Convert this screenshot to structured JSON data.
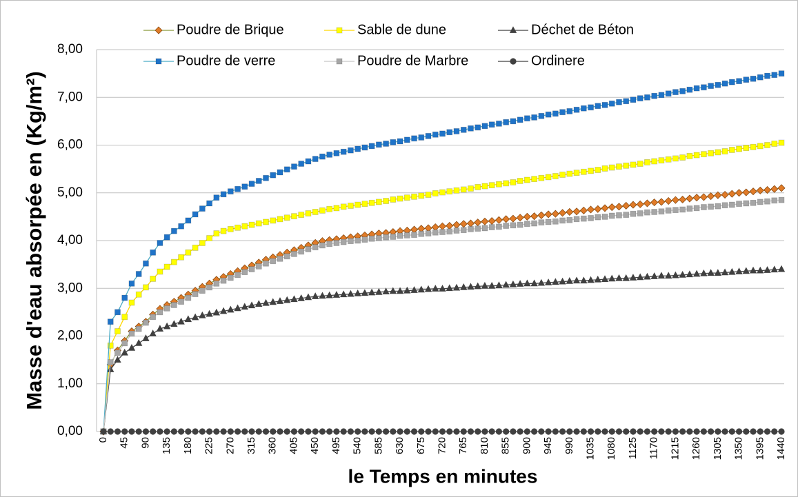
{
  "chart_data": {
    "type": "line",
    "ylabel": "Masse d'eau absorpée en (Kg/m²)",
    "xlabel": "le Temps en minutes",
    "x": [
      0,
      15,
      30,
      45,
      60,
      75,
      90,
      105,
      120,
      135,
      150,
      165,
      180,
      195,
      210,
      225,
      240,
      255,
      270,
      285,
      300,
      315,
      330,
      345,
      360,
      375,
      390,
      405,
      420,
      435,
      450,
      465,
      480,
      495,
      510,
      525,
      540,
      555,
      570,
      585,
      600,
      615,
      630,
      645,
      660,
      675,
      690,
      705,
      720,
      735,
      750,
      765,
      780,
      795,
      810,
      825,
      840,
      855,
      870,
      885,
      900,
      915,
      930,
      945,
      960,
      975,
      990,
      1005,
      1020,
      1035,
      1050,
      1065,
      1080,
      1095,
      1110,
      1125,
      1140,
      1155,
      1170,
      1185,
      1200,
      1215,
      1230,
      1245,
      1260,
      1275,
      1290,
      1305,
      1320,
      1335,
      1350,
      1365,
      1380,
      1395,
      1410,
      1425,
      1440
    ],
    "xlim": [
      0,
      1440
    ],
    "xticks": [
      0,
      45,
      90,
      135,
      180,
      225,
      270,
      315,
      360,
      405,
      450,
      495,
      540,
      585,
      630,
      675,
      720,
      765,
      810,
      855,
      900,
      945,
      990,
      1035,
      1080,
      1125,
      1170,
      1215,
      1260,
      1305,
      1350,
      1395,
      1440
    ],
    "ylim": [
      0,
      8
    ],
    "yticks": [
      {
        "value": 0,
        "label": "0,00"
      },
      {
        "value": 1,
        "label": "1,00"
      },
      {
        "value": 2,
        "label": "2,00"
      },
      {
        "value": 3,
        "label": "3,00"
      },
      {
        "value": 4,
        "label": "4,00"
      },
      {
        "value": 5,
        "label": "5,00"
      },
      {
        "value": 6,
        "label": "6,00"
      },
      {
        "value": 7,
        "label": "7,00"
      },
      {
        "value": 8,
        "label": "8,00"
      }
    ],
    "grid": true,
    "legend": "top",
    "series": [
      {
        "name": "Poudre de Brique",
        "color": "#8a9a3c",
        "marker": "diamond",
        "marker_color": "#e07b28",
        "values": [
          0,
          1.4,
          1.7,
          1.9,
          2.1,
          2.2,
          2.3,
          2.45,
          2.57,
          2.65,
          2.72,
          2.8,
          2.87,
          2.95,
          3.03,
          3.1,
          3.18,
          3.24,
          3.3,
          3.36,
          3.42,
          3.48,
          3.54,
          3.6,
          3.65,
          3.7,
          3.75,
          3.8,
          3.85,
          3.9,
          3.95,
          3.99,
          4.01,
          4.03,
          4.05,
          4.07,
          4.09,
          4.11,
          4.13,
          4.15,
          4.16,
          4.18,
          4.2,
          4.21,
          4.23,
          4.25,
          4.26,
          4.28,
          4.3,
          4.31,
          4.33,
          4.35,
          4.36,
          4.38,
          4.4,
          4.41,
          4.43,
          4.45,
          4.46,
          4.48,
          4.5,
          4.51,
          4.53,
          4.55,
          4.56,
          4.58,
          4.6,
          4.61,
          4.63,
          4.65,
          4.66,
          4.68,
          4.7,
          4.71,
          4.73,
          4.75,
          4.76,
          4.78,
          4.8,
          4.81,
          4.83,
          4.85,
          4.86,
          4.88,
          4.9,
          4.91,
          4.93,
          4.95,
          4.96,
          4.98,
          5,
          5.01,
          5.03,
          5.05,
          5.06,
          5.08,
          5.1
        ]
      },
      {
        "name": "Sable de dune",
        "color": "#ffd800",
        "marker": "square",
        "marker_color": "#ffff00",
        "values": [
          0,
          1.8,
          2.1,
          2.4,
          2.7,
          2.87,
          3.02,
          3.2,
          3.35,
          3.45,
          3.55,
          3.65,
          3.75,
          3.85,
          3.95,
          4.05,
          4.15,
          4.2,
          4.24,
          4.27,
          4.3,
          4.33,
          4.36,
          4.39,
          4.42,
          4.45,
          4.48,
          4.51,
          4.54,
          4.57,
          4.6,
          4.63,
          4.66,
          4.68,
          4.71,
          4.73,
          4.75,
          4.77,
          4.79,
          4.81,
          4.83,
          4.86,
          4.88,
          4.9,
          4.92,
          4.94,
          4.96,
          4.99,
          5.01,
          5.03,
          5.05,
          5.07,
          5.09,
          5.12,
          5.14,
          5.16,
          5.18,
          5.2,
          5.22,
          5.25,
          5.27,
          5.29,
          5.31,
          5.33,
          5.35,
          5.38,
          5.4,
          5.42,
          5.44,
          5.46,
          5.48,
          5.51,
          5.53,
          5.55,
          5.57,
          5.59,
          5.61,
          5.64,
          5.66,
          5.68,
          5.7,
          5.72,
          5.74,
          5.77,
          5.79,
          5.81,
          5.83,
          5.85,
          5.87,
          5.9,
          5.92,
          5.94,
          5.96,
          5.98,
          6,
          6.03,
          6.05
        ]
      },
      {
        "name": "Déchet de Béton",
        "color": "#404040",
        "marker": "triangle",
        "marker_color": "#404040",
        "values": [
          0,
          1.3,
          1.5,
          1.65,
          1.75,
          1.85,
          1.95,
          2.05,
          2.15,
          2.2,
          2.25,
          2.3,
          2.35,
          2.39,
          2.43,
          2.46,
          2.49,
          2.52,
          2.55,
          2.58,
          2.61,
          2.64,
          2.67,
          2.69,
          2.71,
          2.73,
          2.75,
          2.77,
          2.79,
          2.81,
          2.83,
          2.84,
          2.85,
          2.86,
          2.87,
          2.88,
          2.89,
          2.9,
          2.91,
          2.92,
          2.93,
          2.94,
          2.94,
          2.95,
          2.96,
          2.97,
          2.98,
          2.99,
          2.99,
          3,
          3.01,
          3.02,
          3.03,
          3.04,
          3.05,
          3.05,
          3.06,
          3.07,
          3.08,
          3.09,
          3.1,
          3.1,
          3.11,
          3.12,
          3.13,
          3.14,
          3.15,
          3.16,
          3.16,
          3.17,
          3.18,
          3.19,
          3.2,
          3.21,
          3.21,
          3.22,
          3.23,
          3.24,
          3.25,
          3.26,
          3.26,
          3.27,
          3.28,
          3.29,
          3.3,
          3.31,
          3.32,
          3.32,
          3.33,
          3.34,
          3.35,
          3.36,
          3.37,
          3.37,
          3.38,
          3.39,
          3.4
        ]
      },
      {
        "name": "Poudre de verre",
        "color": "#4bacc6",
        "marker": "square",
        "marker_color": "#1f73c8",
        "values": [
          0,
          2.3,
          2.5,
          2.8,
          3.1,
          3.3,
          3.52,
          3.75,
          3.95,
          4.07,
          4.2,
          4.3,
          4.42,
          4.55,
          4.67,
          4.78,
          4.9,
          4.97,
          5.03,
          5.08,
          5.13,
          5.19,
          5.25,
          5.31,
          5.37,
          5.43,
          5.49,
          5.55,
          5.61,
          5.66,
          5.71,
          5.76,
          5.8,
          5.83,
          5.86,
          5.89,
          5.92,
          5.95,
          5.98,
          6.01,
          6.03,
          6.06,
          6.08,
          6.11,
          6.14,
          6.16,
          6.19,
          6.22,
          6.24,
          6.27,
          6.29,
          6.32,
          6.35,
          6.37,
          6.4,
          6.43,
          6.45,
          6.48,
          6.5,
          6.53,
          6.56,
          6.58,
          6.61,
          6.64,
          6.66,
          6.69,
          6.71,
          6.74,
          6.77,
          6.79,
          6.82,
          6.84,
          6.87,
          6.9,
          6.92,
          6.95,
          6.98,
          7,
          7.03,
          7.05,
          7.08,
          7.11,
          7.13,
          7.16,
          7.19,
          7.21,
          7.24,
          7.26,
          7.29,
          7.32,
          7.34,
          7.37,
          7.39,
          7.42,
          7.45,
          7.47,
          7.5
        ]
      },
      {
        "name": "Poudre de Marbre",
        "color": "#c8c8c8",
        "marker": "square",
        "marker_color": "#a6a6a6",
        "values": [
          0,
          1.45,
          1.65,
          1.85,
          2.05,
          2.15,
          2.28,
          2.4,
          2.5,
          2.58,
          2.65,
          2.72,
          2.8,
          2.88,
          2.95,
          3.02,
          3.1,
          3.16,
          3.22,
          3.28,
          3.34,
          3.4,
          3.46,
          3.52,
          3.57,
          3.62,
          3.67,
          3.72,
          3.77,
          3.82,
          3.86,
          3.9,
          3.93,
          3.95,
          3.97,
          3.99,
          4,
          4.02,
          4.04,
          4.05,
          4.07,
          4.08,
          4.1,
          4.11,
          4.12,
          4.14,
          4.15,
          4.17,
          4.18,
          4.19,
          4.21,
          4.22,
          4.24,
          4.25,
          4.26,
          4.28,
          4.29,
          4.31,
          4.32,
          4.33,
          4.35,
          4.36,
          4.38,
          4.39,
          4.4,
          4.42,
          4.43,
          4.45,
          4.46,
          4.47,
          4.49,
          4.5,
          4.52,
          4.53,
          4.54,
          4.56,
          4.57,
          4.59,
          4.6,
          4.61,
          4.63,
          4.64,
          4.65,
          4.67,
          4.68,
          4.7,
          4.71,
          4.72,
          4.74,
          4.75,
          4.77,
          4.78,
          4.79,
          4.81,
          4.82,
          4.84,
          4.85
        ]
      },
      {
        "name": "Ordinere",
        "color": "#404040",
        "marker": "circle",
        "marker_color": "#404040",
        "values": [
          0,
          0,
          0,
          0,
          0,
          0,
          0,
          0,
          0,
          0,
          0,
          0,
          0,
          0,
          0,
          0,
          0,
          0,
          0,
          0,
          0,
          0,
          0,
          0,
          0,
          0,
          0,
          0,
          0,
          0,
          0,
          0,
          0,
          0,
          0,
          0,
          0,
          0,
          0,
          0,
          0,
          0,
          0,
          0,
          0,
          0,
          0,
          0,
          0,
          0,
          0,
          0,
          0,
          0,
          0,
          0,
          0,
          0,
          0,
          0,
          0,
          0,
          0,
          0,
          0,
          0,
          0,
          0,
          0,
          0,
          0,
          0,
          0,
          0,
          0,
          0,
          0,
          0,
          0,
          0,
          0,
          0,
          0,
          0,
          0,
          0,
          0,
          0,
          0,
          0,
          0,
          0,
          0,
          0,
          0,
          0,
          0
        ]
      }
    ]
  }
}
